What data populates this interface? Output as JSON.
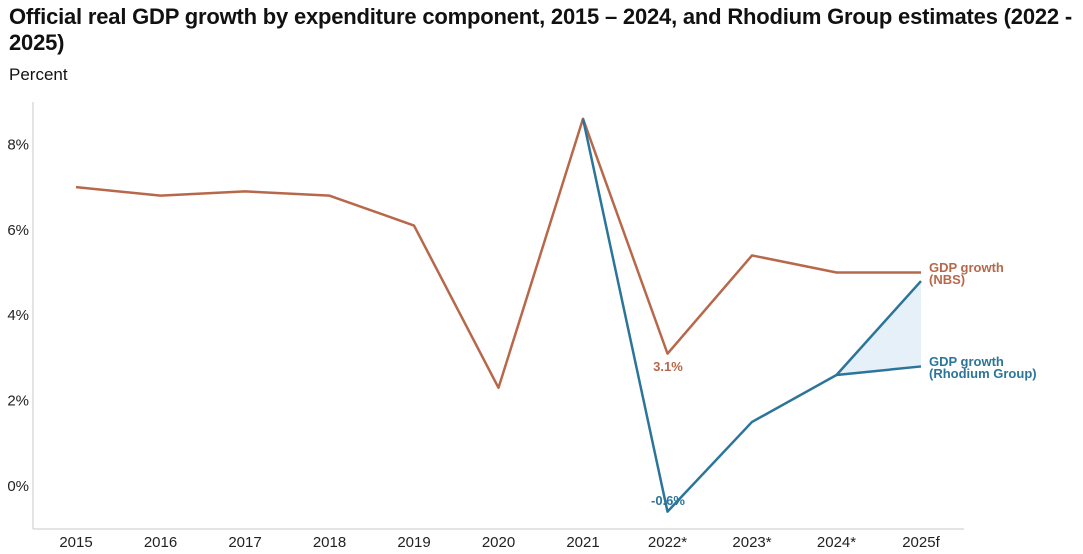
{
  "chart_data": {
    "type": "line",
    "title": "Official real GDP growth by expenditure component, 2015 – 2024, and Rhodium Group estimates (2022 - 2025)",
    "subtitle": "Percent",
    "categories": [
      "2015",
      "2016",
      "2017",
      "2018",
      "2019",
      "2020",
      "2021",
      "2022*",
      "2023*",
      "2024*",
      "2025f"
    ],
    "ylim": [
      -1,
      9
    ],
    "yticks": [
      {
        "value": 0,
        "label": "0%"
      },
      {
        "value": 2,
        "label": "2%"
      },
      {
        "value": 4,
        "label": "4%"
      },
      {
        "value": 6,
        "label": "6%"
      },
      {
        "value": 8,
        "label": "8%"
      }
    ],
    "series": [
      {
        "name": "GDP growth (NBS)",
        "label_lines": [
          "GDP growth",
          "(NBS)"
        ],
        "color": "#b8684a",
        "values": [
          7.0,
          6.8,
          6.9,
          6.8,
          6.1,
          2.3,
          8.6,
          3.1,
          5.4,
          5.0,
          5.0
        ]
      },
      {
        "name": "GDP growth (Rhodium Group)",
        "label_lines": [
          "GDP growth",
          "(Rhodium Group)"
        ],
        "color": "#2b759b",
        "values": [
          null,
          null,
          null,
          null,
          null,
          null,
          8.6,
          -0.6,
          1.5,
          2.6,
          2.8
        ],
        "range_2025f": [
          2.8,
          4.8
        ],
        "range_upper_from_2024": [
          2.6,
          4.8
        ]
      }
    ],
    "annotations": [
      {
        "text": "3.1%",
        "series": "GDP growth (NBS)",
        "category": "2022*"
      },
      {
        "text": "-0.6%",
        "series": "GDP growth (Rhodium Group)",
        "category": "2022*"
      }
    ],
    "band_color": "#e6f0f8",
    "grid": false
  }
}
